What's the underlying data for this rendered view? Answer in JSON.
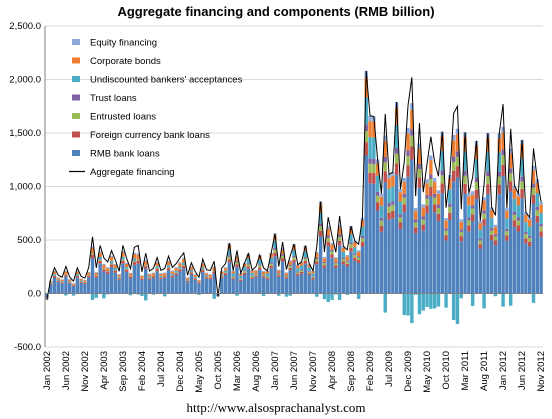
{
  "chart_data": {
    "type": "bar",
    "stacked": true,
    "title": "Aggregate financing and components (RMB billion)",
    "xlabel": "",
    "ylabel": "",
    "ylim": [
      -500,
      2500
    ],
    "y_ticks": [
      -500,
      0,
      500,
      1000,
      1500,
      2000,
      2500
    ],
    "y_tick_labels": [
      "-500.0",
      "0.0",
      "500.0",
      "1,000.0",
      "1,500.0",
      "2,000.0",
      "2,500.0"
    ],
    "x_start": "Jan 2002",
    "x_end": "Nov 2012",
    "x_tick_labels": [
      "Jan 2002",
      "Jun 2002",
      "Nov 2002",
      "Apr 2003",
      "Sep 2003",
      "Feb 2004",
      "Jul 2004",
      "Dec 2004",
      "May 2005",
      "Oct 2005",
      "Mar 2006",
      "Aug 2006",
      "Jan 2007",
      "Jun 2007",
      "Nov 2007",
      "Apr 2008",
      "Sep 2008",
      "Feb 2009",
      "Jul 2009",
      "Dec 2009",
      "May 2010",
      "Oct 2010",
      "Mar 2011",
      "Aug 2011",
      "Jan 2012",
      "Jun 2012",
      "Nov 2012"
    ],
    "legend_position": "top-left inside",
    "grid": true,
    "series": [
      {
        "name": "Equity financing",
        "color": "#8EA9DB",
        "kind": "bar"
      },
      {
        "name": "Corporate bonds",
        "color": "#ED7D31",
        "kind": "bar"
      },
      {
        "name": "Undiscounted bankers' acceptances",
        "color": "#4BACC6",
        "kind": "bar"
      },
      {
        "name": "Trust loans",
        "color": "#8064A2",
        "kind": "bar"
      },
      {
        "name": "Entrusted loans",
        "color": "#9BBB59",
        "kind": "bar"
      },
      {
        "name": "Foreign currency bank loans",
        "color": "#C0504D",
        "kind": "bar"
      },
      {
        "name": "RMB bank loans",
        "color": "#4F81BD",
        "kind": "bar"
      },
      {
        "name": "Aggregate financing",
        "color": "#000000",
        "kind": "line"
      }
    ],
    "aggregate_financing_annual_peaks": {
      "2002": 300,
      "2003": 530,
      "2004": 450,
      "2005": 380,
      "2006": 470,
      "2007": 560,
      "2008": 860,
      "2009": 2080,
      "2010": 2020,
      "2011": 1750,
      "2012": 1770
    }
  },
  "footer": {
    "url": "http://www.alsosprachanalyst.com"
  }
}
